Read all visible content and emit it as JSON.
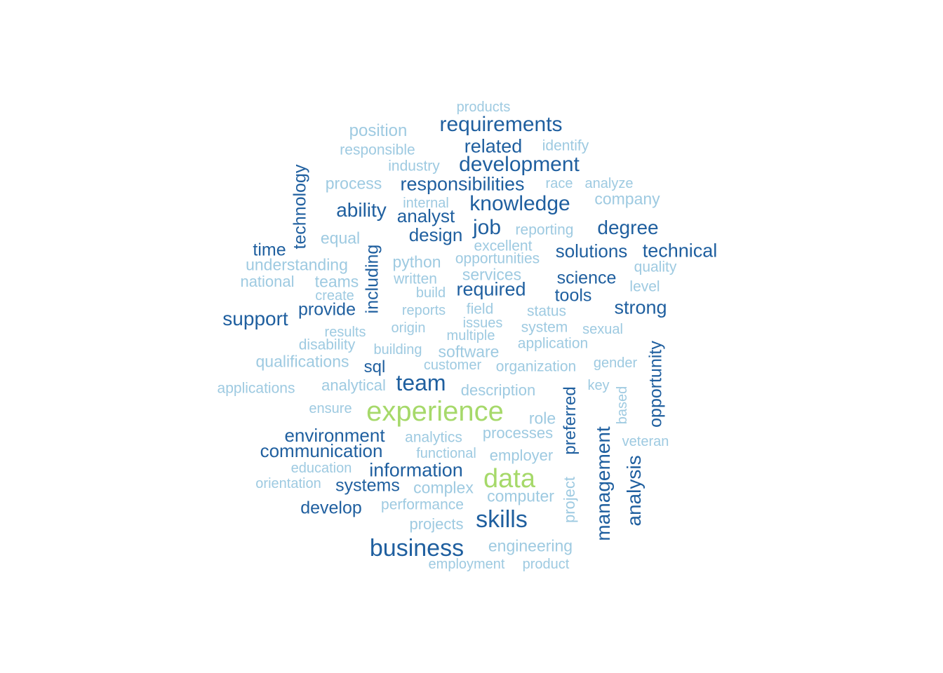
{
  "colors": {
    "big": "#a6d96a",
    "mid": "#1f5f9f",
    "small": "#9ecae1"
  },
  "words": [
    {
      "text": "experience",
      "weight": 3,
      "vertical": false
    },
    {
      "text": "data",
      "weight": 3,
      "vertical": false
    },
    {
      "text": "business",
      "weight": 2,
      "vertical": false
    },
    {
      "text": "skills",
      "weight": 2,
      "vertical": false
    },
    {
      "text": "team",
      "weight": 2,
      "vertical": false
    },
    {
      "text": "requirements",
      "weight": 2,
      "vertical": false
    },
    {
      "text": "development",
      "weight": 2,
      "vertical": false
    },
    {
      "text": "knowledge",
      "weight": 2,
      "vertical": false
    },
    {
      "text": "responsibilities",
      "weight": 2,
      "vertical": false
    },
    {
      "text": "related",
      "weight": 2,
      "vertical": false
    },
    {
      "text": "ability",
      "weight": 2,
      "vertical": false
    },
    {
      "text": "analyst",
      "weight": 2,
      "vertical": false
    },
    {
      "text": "design",
      "weight": 2,
      "vertical": false
    },
    {
      "text": "job",
      "weight": 2,
      "vertical": false
    },
    {
      "text": "degree",
      "weight": 2,
      "vertical": false
    },
    {
      "text": "solutions",
      "weight": 2,
      "vertical": false
    },
    {
      "text": "technical",
      "weight": 2,
      "vertical": false
    },
    {
      "text": "time",
      "weight": 2,
      "vertical": false
    },
    {
      "text": "required",
      "weight": 2,
      "vertical": false
    },
    {
      "text": "science",
      "weight": 2,
      "vertical": false
    },
    {
      "text": "tools",
      "weight": 2,
      "vertical": false
    },
    {
      "text": "strong",
      "weight": 2,
      "vertical": false
    },
    {
      "text": "support",
      "weight": 2,
      "vertical": false
    },
    {
      "text": "provide",
      "weight": 2,
      "vertical": false
    },
    {
      "text": "sql",
      "weight": 2,
      "vertical": false
    },
    {
      "text": "environment",
      "weight": 2,
      "vertical": false
    },
    {
      "text": "communication",
      "weight": 2,
      "vertical": false
    },
    {
      "text": "information",
      "weight": 2,
      "vertical": false
    },
    {
      "text": "systems",
      "weight": 2,
      "vertical": false
    },
    {
      "text": "develop",
      "weight": 2,
      "vertical": false
    },
    {
      "text": "technology",
      "weight": 2,
      "vertical": true
    },
    {
      "text": "including",
      "weight": 2,
      "vertical": true
    },
    {
      "text": "preferred",
      "weight": 2,
      "vertical": true
    },
    {
      "text": "management",
      "weight": 2,
      "vertical": true
    },
    {
      "text": "analysis",
      "weight": 2,
      "vertical": true
    },
    {
      "text": "opportunity",
      "weight": 2,
      "vertical": true
    },
    {
      "text": "products",
      "weight": 1,
      "vertical": false
    },
    {
      "text": "position",
      "weight": 1,
      "vertical": false
    },
    {
      "text": "responsible",
      "weight": 1,
      "vertical": false
    },
    {
      "text": "identify",
      "weight": 1,
      "vertical": false
    },
    {
      "text": "industry",
      "weight": 1,
      "vertical": false
    },
    {
      "text": "process",
      "weight": 1,
      "vertical": false
    },
    {
      "text": "race",
      "weight": 1,
      "vertical": false
    },
    {
      "text": "analyze",
      "weight": 1,
      "vertical": false
    },
    {
      "text": "internal",
      "weight": 1,
      "vertical": false
    },
    {
      "text": "company",
      "weight": 1,
      "vertical": false
    },
    {
      "text": "reporting",
      "weight": 1,
      "vertical": false
    },
    {
      "text": "equal",
      "weight": 1,
      "vertical": false
    },
    {
      "text": "excellent",
      "weight": 1,
      "vertical": false
    },
    {
      "text": "understanding",
      "weight": 1,
      "vertical": false
    },
    {
      "text": "python",
      "weight": 1,
      "vertical": false
    },
    {
      "text": "opportunities",
      "weight": 1,
      "vertical": false
    },
    {
      "text": "quality",
      "weight": 1,
      "vertical": false
    },
    {
      "text": "national",
      "weight": 1,
      "vertical": false
    },
    {
      "text": "teams",
      "weight": 1,
      "vertical": false
    },
    {
      "text": "written",
      "weight": 1,
      "vertical": false
    },
    {
      "text": "services",
      "weight": 1,
      "vertical": false
    },
    {
      "text": "level",
      "weight": 1,
      "vertical": false
    },
    {
      "text": "create",
      "weight": 1,
      "vertical": false
    },
    {
      "text": "build",
      "weight": 1,
      "vertical": false
    },
    {
      "text": "reports",
      "weight": 1,
      "vertical": false
    },
    {
      "text": "field",
      "weight": 1,
      "vertical": false
    },
    {
      "text": "status",
      "weight": 1,
      "vertical": false
    },
    {
      "text": "results",
      "weight": 1,
      "vertical": false
    },
    {
      "text": "origin",
      "weight": 1,
      "vertical": false
    },
    {
      "text": "issues",
      "weight": 1,
      "vertical": false
    },
    {
      "text": "system",
      "weight": 1,
      "vertical": false
    },
    {
      "text": "sexual",
      "weight": 1,
      "vertical": false
    },
    {
      "text": "multiple",
      "weight": 1,
      "vertical": false
    },
    {
      "text": "disability",
      "weight": 1,
      "vertical": false
    },
    {
      "text": "application",
      "weight": 1,
      "vertical": false
    },
    {
      "text": "building",
      "weight": 1,
      "vertical": false
    },
    {
      "text": "software",
      "weight": 1,
      "vertical": false
    },
    {
      "text": "qualifications",
      "weight": 1,
      "vertical": false
    },
    {
      "text": "customer",
      "weight": 1,
      "vertical": false
    },
    {
      "text": "organization",
      "weight": 1,
      "vertical": false
    },
    {
      "text": "gender",
      "weight": 1,
      "vertical": false
    },
    {
      "text": "applications",
      "weight": 1,
      "vertical": false
    },
    {
      "text": "analytical",
      "weight": 1,
      "vertical": false
    },
    {
      "text": "description",
      "weight": 1,
      "vertical": false
    },
    {
      "text": "key",
      "weight": 1,
      "vertical": false
    },
    {
      "text": "ensure",
      "weight": 1,
      "vertical": false
    },
    {
      "text": "role",
      "weight": 1,
      "vertical": false
    },
    {
      "text": "analytics",
      "weight": 1,
      "vertical": false
    },
    {
      "text": "processes",
      "weight": 1,
      "vertical": false
    },
    {
      "text": "veteran",
      "weight": 1,
      "vertical": false
    },
    {
      "text": "functional",
      "weight": 1,
      "vertical": false
    },
    {
      "text": "employer",
      "weight": 1,
      "vertical": false
    },
    {
      "text": "education",
      "weight": 1,
      "vertical": false
    },
    {
      "text": "orientation",
      "weight": 1,
      "vertical": false
    },
    {
      "text": "complex",
      "weight": 1,
      "vertical": false
    },
    {
      "text": "computer",
      "weight": 1,
      "vertical": false
    },
    {
      "text": "performance",
      "weight": 1,
      "vertical": false
    },
    {
      "text": "projects",
      "weight": 1,
      "vertical": false
    },
    {
      "text": "engineering",
      "weight": 1,
      "vertical": false
    },
    {
      "text": "employment",
      "weight": 1,
      "vertical": false
    },
    {
      "text": "product",
      "weight": 1,
      "vertical": false
    },
    {
      "text": "based",
      "weight": 1,
      "vertical": true
    },
    {
      "text": "project",
      "weight": 1,
      "vertical": true
    }
  ]
}
